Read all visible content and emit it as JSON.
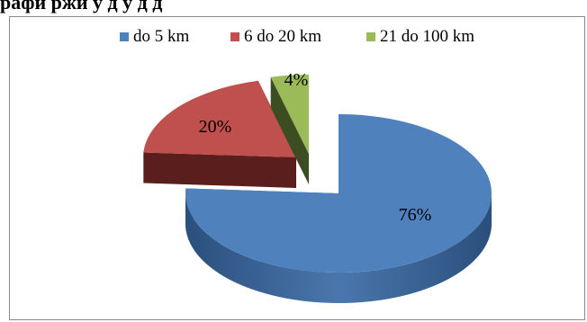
{
  "header": {
    "top_text": "рафи            ржи  у  д         у  д  д"
  },
  "chart_data": {
    "type": "pie",
    "title": "",
    "legend_position": "top",
    "categories": [
      "do 5 km",
      "6 do 20 km",
      "21 do 100 km"
    ],
    "values": [
      76,
      20,
      4
    ],
    "labels": [
      "76%",
      "20%",
      "4%"
    ],
    "colors": {
      "top": [
        "#4f81bd",
        "#c0504d",
        "#9bbb59"
      ],
      "side": [
        "#2f5786",
        "#5a1e1c",
        "#3d4d22"
      ]
    },
    "three_d": true,
    "exploded": true
  }
}
